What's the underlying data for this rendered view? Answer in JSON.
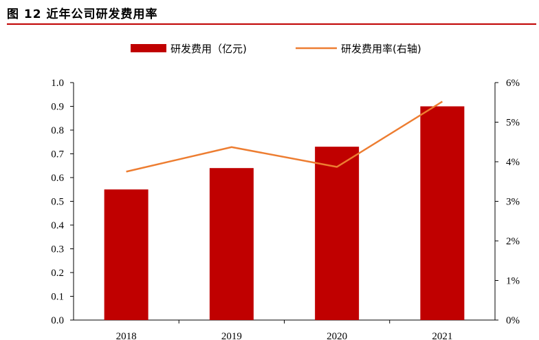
{
  "figure": {
    "title": "图 12 近年公司研发费用率"
  },
  "chart_data": {
    "type": "bar",
    "categories": [
      "2018",
      "2019",
      "2020",
      "2021"
    ],
    "series": [
      {
        "name": "研发费用（亿元)",
        "type": "bar",
        "axis": "left",
        "values": [
          0.55,
          0.64,
          0.73,
          0.9
        ],
        "color": "#c00000"
      },
      {
        "name": "研发费用率(右轴)",
        "type": "line",
        "axis": "right",
        "values": [
          3.75,
          4.37,
          3.87,
          5.52
        ],
        "color": "#ed7d31"
      }
    ],
    "y_left": {
      "ylim": [
        0,
        1.0
      ],
      "ticks": [
        "0.0",
        "0.1",
        "0.2",
        "0.3",
        "0.4",
        "0.5",
        "0.6",
        "0.7",
        "0.8",
        "0.9",
        "1.0"
      ]
    },
    "y_right": {
      "ylim": [
        0,
        6
      ],
      "ticks": [
        "0%",
        "1%",
        "2%",
        "3%",
        "4%",
        "5%",
        "6%"
      ]
    },
    "grid": false,
    "legend": "top"
  }
}
